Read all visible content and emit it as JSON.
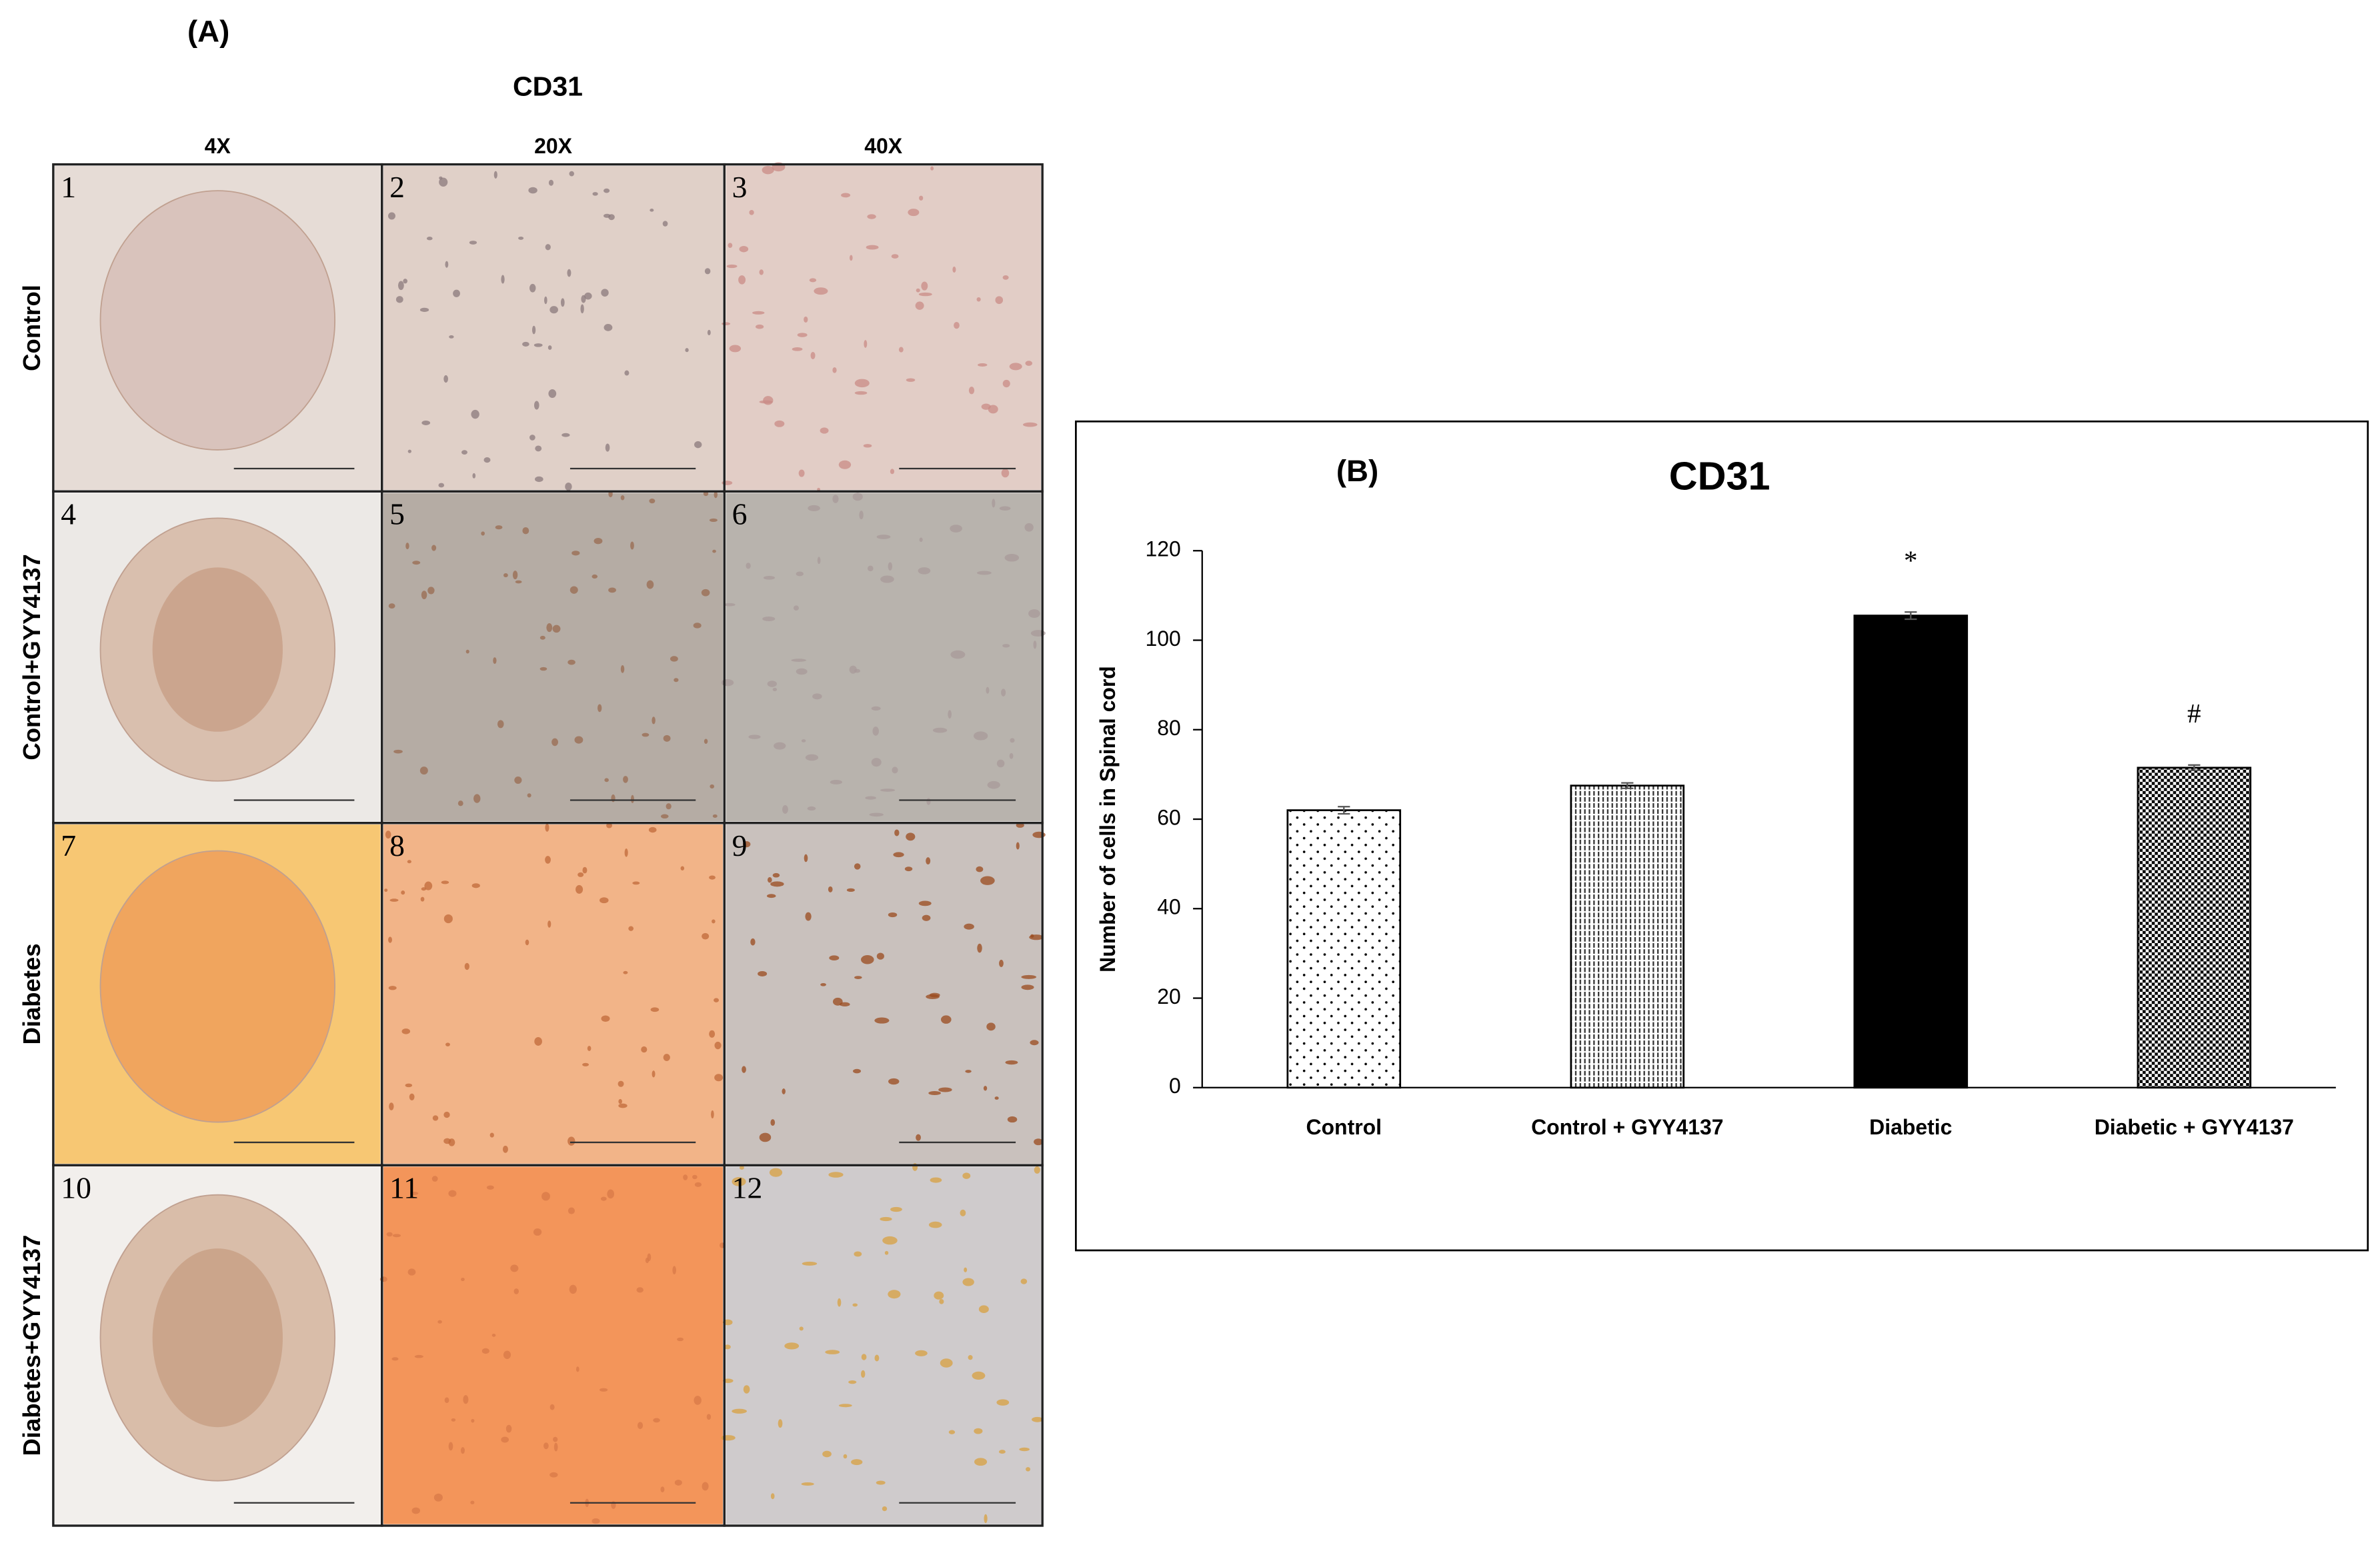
{
  "panel_a": {
    "label": "(A)",
    "title": "CD31",
    "columns": [
      "4X",
      "20X",
      "40X"
    ],
    "rows": [
      "Control",
      "Control+GYY4137",
      "Diabetes",
      "Diabetes+GYY4137"
    ],
    "panel_numbers": [
      [
        "1",
        "2",
        "3"
      ],
      [
        "4",
        "5",
        "6"
      ],
      [
        "7",
        "8",
        "9"
      ],
      [
        "10",
        "11",
        "12"
      ]
    ]
  },
  "chart_data": {
    "type": "bar",
    "panel_label": "(B)",
    "title": "CD31",
    "y_label": "Number of cells in Spinal cord",
    "categories": [
      "Control",
      "Control + GYY4137",
      "Diabetic",
      "Diabetic + GYY4137"
    ],
    "values": [
      62,
      67.5,
      105.5,
      71.5
    ],
    "errors": [
      0.8,
      0.6,
      0.8,
      0.6
    ],
    "patterns": [
      "dots",
      "vlines",
      "solid",
      "checker"
    ],
    "color": "#000000",
    "bar_annotations": [
      null,
      null,
      "*",
      "#"
    ],
    "ylim": [
      0,
      120
    ],
    "yticks": [
      0,
      20,
      40,
      60,
      80,
      100,
      120
    ]
  }
}
